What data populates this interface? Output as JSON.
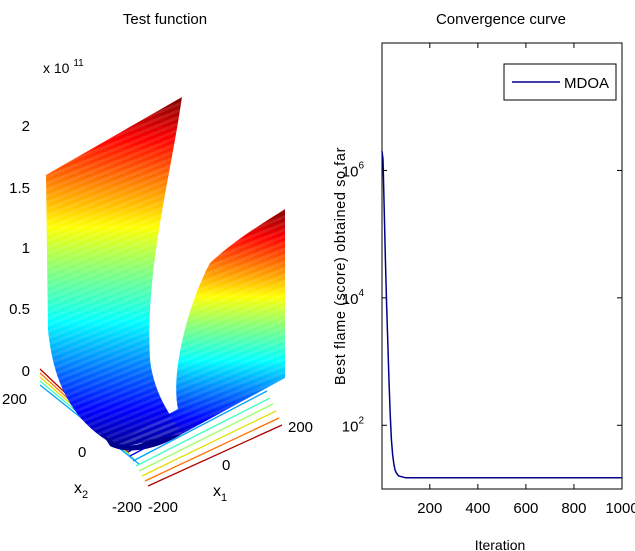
{
  "chart_data": [
    {
      "type": "surface",
      "title": "Test function",
      "xlabel": "x",
      "xlabel_sub": "1",
      "ylabel": "x",
      "ylabel_sub": "2",
      "z_multiplier": "x 10",
      "z_multiplier_exp": "11",
      "z_ticks": [
        "0",
        "0.5",
        "1",
        "1.5",
        "2"
      ],
      "x1_ticks": [
        "-200",
        "0",
        "200"
      ],
      "x2_ticks": [
        "-200",
        "0",
        "200"
      ],
      "colormap": "jet",
      "z_range": [
        0,
        200000000000.0
      ],
      "x1_range": [
        -200,
        200
      ],
      "x2_range": [
        -200,
        200
      ]
    },
    {
      "type": "line",
      "title": "Convergence curve",
      "xlabel": "Iteration",
      "ylabel": "Best flame (score) obtained so far",
      "yscale": "log",
      "xlim": [
        1,
        1000
      ],
      "ylim": [
        10,
        100000000
      ],
      "x_ticks": [
        "200",
        "400",
        "600",
        "800",
        "1000"
      ],
      "y_ticks": [
        {
          "value": 100,
          "base": "10",
          "exp": "2"
        },
        {
          "value": 10000,
          "base": "10",
          "exp": "4"
        },
        {
          "value": 1000000,
          "base": "10",
          "exp": "6"
        }
      ],
      "legend_position": "top-right",
      "series": [
        {
          "name": "MDOA",
          "color": "#00008b",
          "x": [
            1,
            5,
            10,
            15,
            20,
            25,
            30,
            35,
            40,
            45,
            50,
            55,
            60,
            70,
            100,
            200,
            400,
            600,
            800,
            1000
          ],
          "y": [
            2000000,
            1500000,
            250000,
            40000,
            8000,
            2000,
            500,
            150,
            60,
            35,
            25,
            20,
            18,
            16,
            15,
            15,
            15,
            15,
            15,
            15
          ]
        }
      ]
    }
  ]
}
